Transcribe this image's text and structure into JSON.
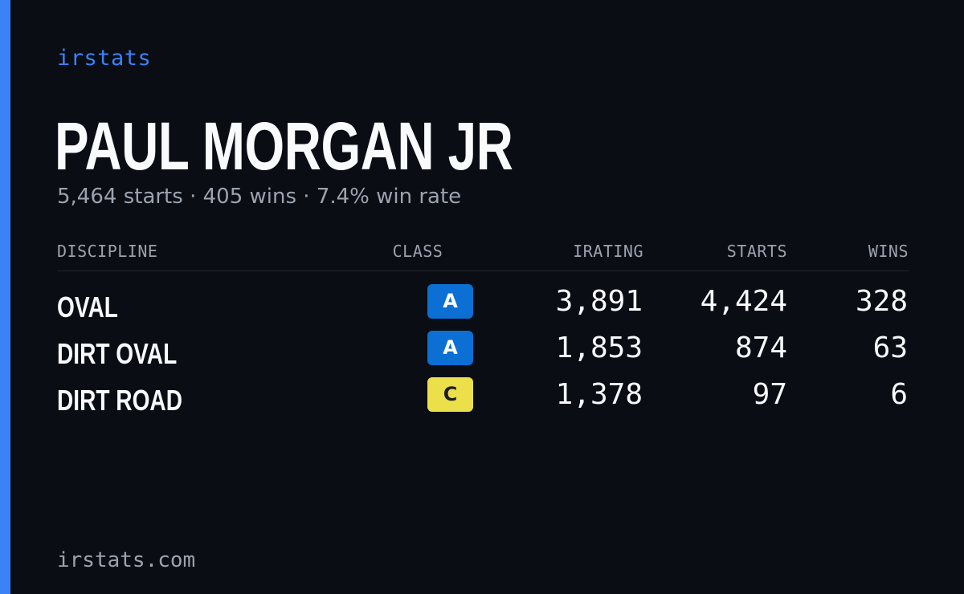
{
  "brand": "irstats",
  "driver": {
    "name": "PAUL MORGAN JR",
    "starts": "5,464 starts",
    "wins": "405 wins",
    "win_rate": "7.4% win rate",
    "separator": "·"
  },
  "table": {
    "headers": {
      "discipline": "DISCIPLINE",
      "class": "CLASS",
      "irating": "IRATING",
      "starts": "STARTS",
      "wins": "WINS"
    },
    "rows": [
      {
        "discipline": "OVAL",
        "class": "A",
        "irating": "3,891",
        "starts": "4,424",
        "wins": "328"
      },
      {
        "discipline": "DIRT OVAL",
        "class": "A",
        "irating": "1,853",
        "starts": "874",
        "wins": "63"
      },
      {
        "discipline": "DIRT ROAD",
        "class": "C",
        "irating": "1,378",
        "starts": "97",
        "wins": "6"
      }
    ]
  },
  "class_colors": {
    "A": {
      "bg": "#0b6fd4",
      "fg": "#ffffff"
    },
    "C": {
      "bg": "#ebdf4a",
      "fg": "#1e1e1e"
    }
  },
  "colors": {
    "background": "#0a0d14",
    "accent": "#3b82f6",
    "muted": "#9ca3af"
  },
  "footer": "irstats.com"
}
